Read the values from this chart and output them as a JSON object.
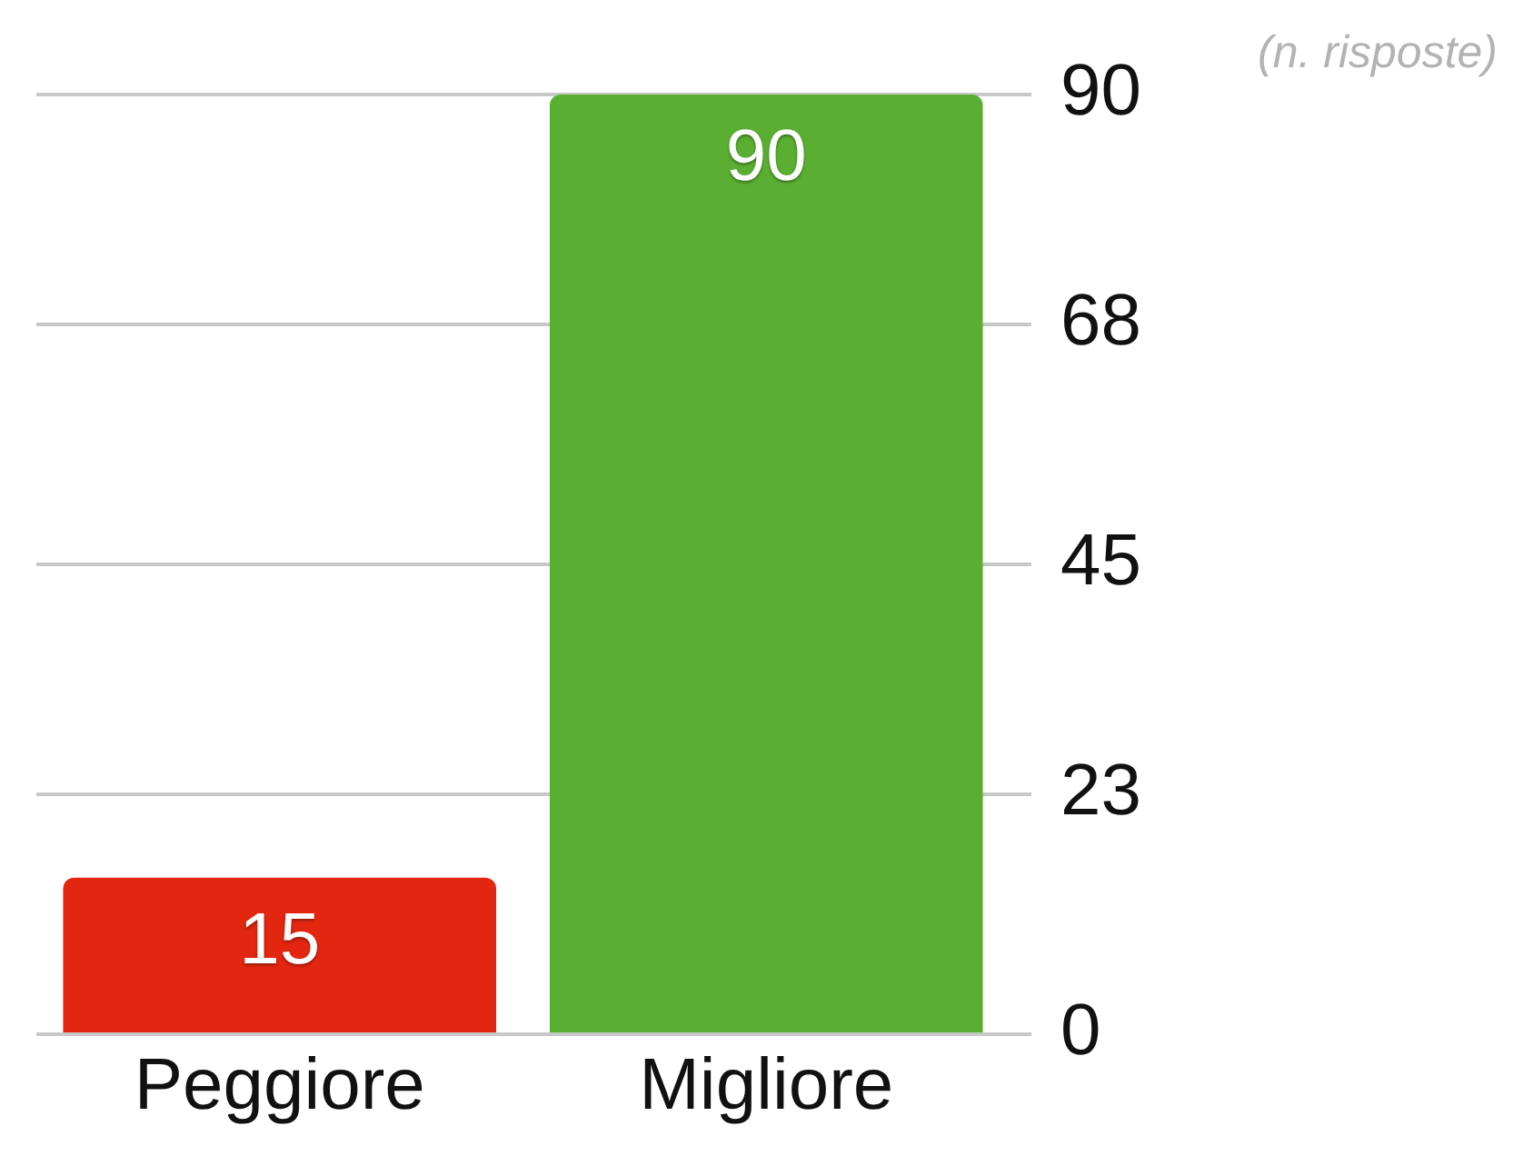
{
  "chart_data": {
    "type": "bar",
    "categories": [
      "Peggiore",
      "Migliore"
    ],
    "values": [
      15,
      90
    ],
    "colors": [
      "#e2260f",
      "#5aae32"
    ],
    "ylabel": "(n. risposte)",
    "ylim": [
      0,
      90
    ],
    "yticks": [
      0,
      23,
      45,
      68,
      90
    ],
    "grid": "y",
    "data_labels": true
  }
}
